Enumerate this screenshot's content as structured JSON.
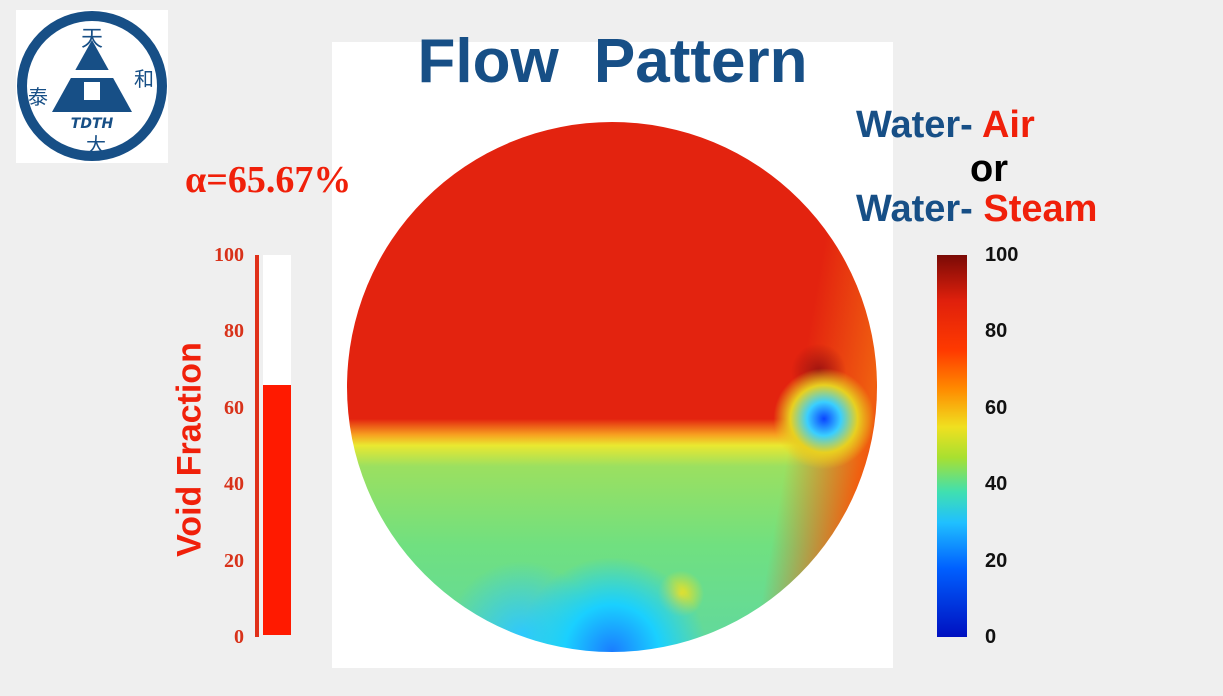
{
  "logo": {
    "characters": [
      "天",
      "泰",
      "和",
      "大"
    ],
    "text": "TDTH",
    "color": "#174f86"
  },
  "title": "Flow Pattern",
  "alpha_readout": "α=65.67%",
  "void_fraction": {
    "label": "Void Fraction",
    "ticks": [
      "100",
      "80",
      "60",
      "40",
      "20",
      "0"
    ],
    "value_percent": 65.67,
    "color": "#ff1a00"
  },
  "legend": {
    "line1": {
      "a": "Water",
      "sep": "-",
      "b": "Air"
    },
    "or": "or",
    "line2": {
      "a": "Water",
      "sep": "-",
      "b": "Steam"
    },
    "colors": {
      "water": "#174f86",
      "gas": "#f0200a"
    }
  },
  "colorbar": {
    "ticks": [
      "100",
      "80",
      "60",
      "40",
      "20",
      "0"
    ],
    "colormap": "jet"
  }
}
